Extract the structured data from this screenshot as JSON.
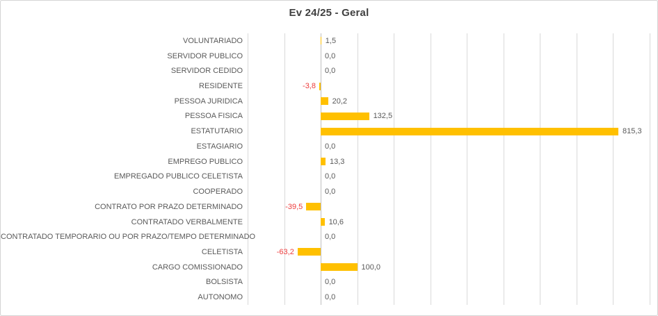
{
  "window": {
    "background_color": "#FFFFFF",
    "border_color": "#D4D4D4"
  },
  "chart_data": {
    "type": "bar",
    "orientation": "horizontal",
    "title": "Ev 24/25 - Geral",
    "categories": [
      "VOLUNTARIADO",
      "SERVIDOR PUBLICO",
      "SERVIDOR CEDIDO",
      "RESIDENTE",
      "PESSOA JURIDICA",
      "PESSOA FISICA",
      "ESTATUTARIO",
      "ESTAGIARIO",
      "EMPREGO PUBLICO",
      "EMPREGADO PUBLICO CELETISTA",
      "COOPERADO",
      "CONTRATO POR PRAZO DETERMINADO",
      "CONTRATADO VERBALMENTE",
      "CONTRATADO TEMPORARIO OU POR PRAZO/TEMPO DETERMINADO",
      "CELETISTA",
      "CARGO COMISSIONADO",
      "BOLSISTA",
      "AUTONOMO"
    ],
    "values": [
      1.5,
      0.0,
      0.0,
      -3.8,
      20.2,
      132.5,
      815.3,
      0.0,
      13.3,
      0.0,
      0.0,
      -39.5,
      10.6,
      0.0,
      -63.2,
      100.0,
      0.0,
      0.0
    ],
    "value_labels": [
      "1,5",
      "0,0",
      "0,0",
      "-3,8",
      "20,2",
      "132,5",
      "815,3",
      "0,0",
      "13,3",
      "0,0",
      "0,0",
      "-39,5",
      "10,6",
      "0,0",
      "-63,2",
      "100,0",
      "0,0",
      "0,0"
    ],
    "xlim": [
      -200,
      900
    ],
    "gridline_step": 100,
    "grid": true,
    "legend": false,
    "x_tick_labels_visible": false,
    "bar_color": "#FFC000",
    "negative_label_color": "#ED3B3B",
    "label_color": "#595959",
    "title_color": "#404040",
    "gridline_color": "#D9D9D9",
    "zero_axis_color": "#BFBFBF"
  }
}
